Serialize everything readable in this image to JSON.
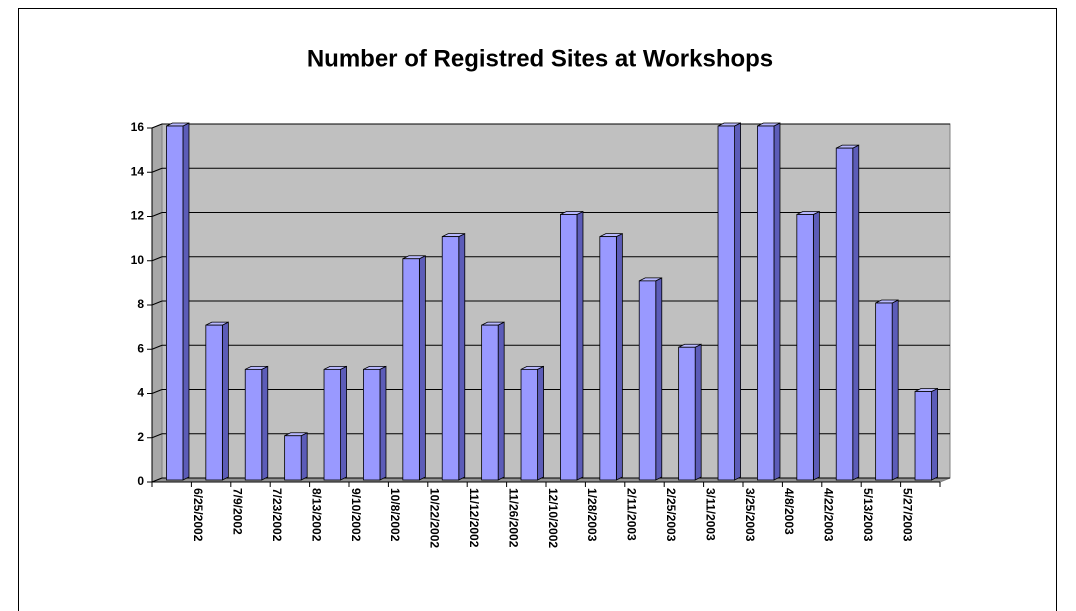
{
  "chart_data": {
    "type": "bar",
    "title": "Number of Registred Sites at Workshops",
    "categories": [
      null,
      "6/25/2002",
      "7/9/2002",
      "7/23/2002",
      "8/13/2002",
      "9/10/2002",
      "10/8/2002",
      "10/22/2002",
      "11/12/2002",
      "11/26/2002",
      "12/10/2002",
      "1/28/2003",
      "2/11/2003",
      "2/25/2003",
      "3/11/2003",
      "3/25/2003",
      "4/8/2003",
      "4/22/2003",
      "5/13/2003",
      "5/27/2003"
    ],
    "values": [
      16,
      7,
      5,
      2,
      5,
      5,
      10,
      11,
      7,
      5,
      12,
      11,
      9,
      6,
      16,
      16,
      12,
      15,
      8,
      4
    ],
    "color": "#9999ff",
    "ylim": [
      0,
      16
    ],
    "yticks": [
      0,
      2,
      4,
      6,
      8,
      10,
      12,
      14,
      16
    ],
    "grid": true
  }
}
